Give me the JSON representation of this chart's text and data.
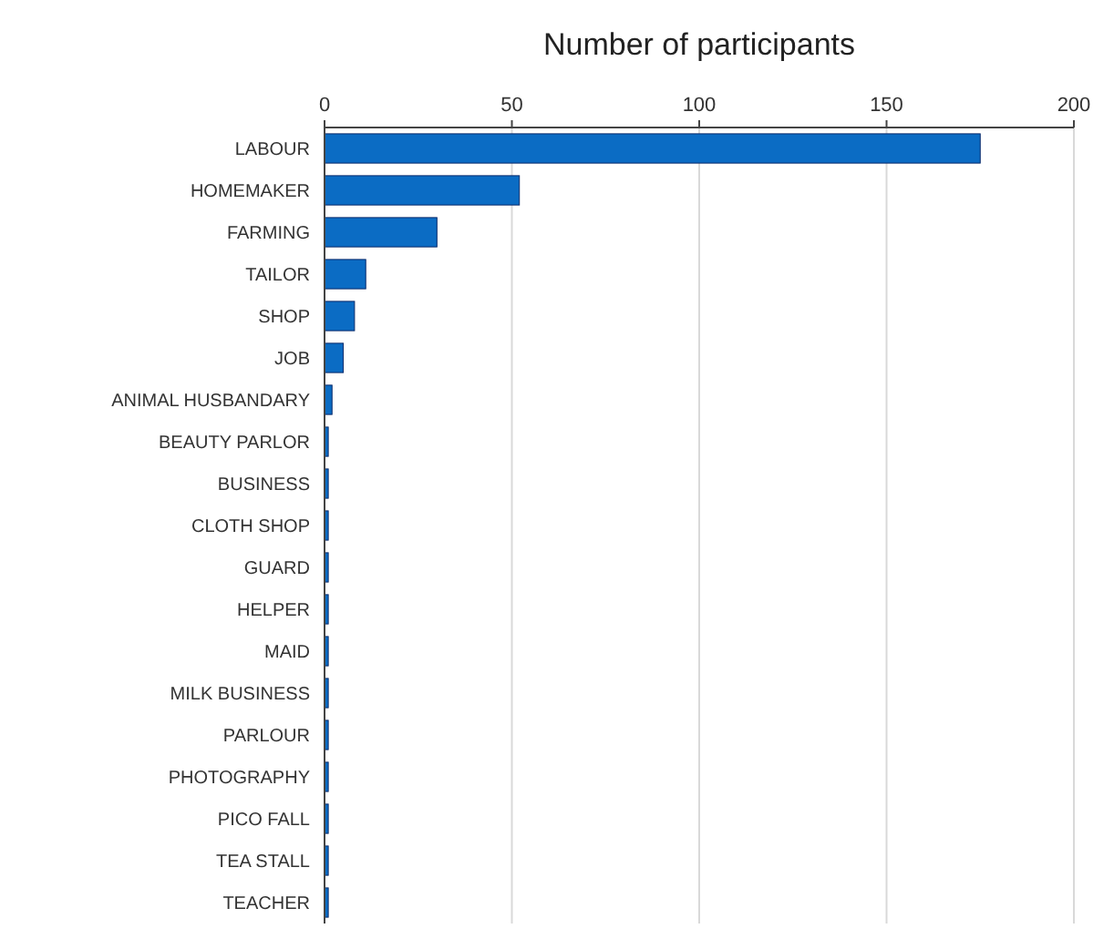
{
  "chart_data": {
    "type": "bar",
    "orientation": "horizontal",
    "title": "Number of participants",
    "categories": [
      "LABOUR",
      "HOMEMAKER",
      "FARMING",
      "TAILOR",
      "SHOP",
      "JOB",
      "ANIMAL HUSBANDARY",
      "BEAUTY PARLOR",
      "BUSINESS",
      "CLOTH SHOP",
      "GUARD",
      "HELPER",
      "MAID",
      "MILK BUSINESS",
      "PARLOUR",
      "PHOTOGRAPHY",
      "PICO FALL",
      "TEA STALL",
      "TEACHER"
    ],
    "values": [
      175,
      52,
      30,
      11,
      8,
      5,
      2,
      1,
      1,
      1,
      1,
      1,
      1,
      1,
      1,
      1,
      1,
      1,
      1
    ],
    "color": "#0b6cc4",
    "xlim": [
      0,
      200
    ],
    "xticks": [
      0,
      50,
      100,
      150,
      200
    ],
    "grid": "x"
  }
}
